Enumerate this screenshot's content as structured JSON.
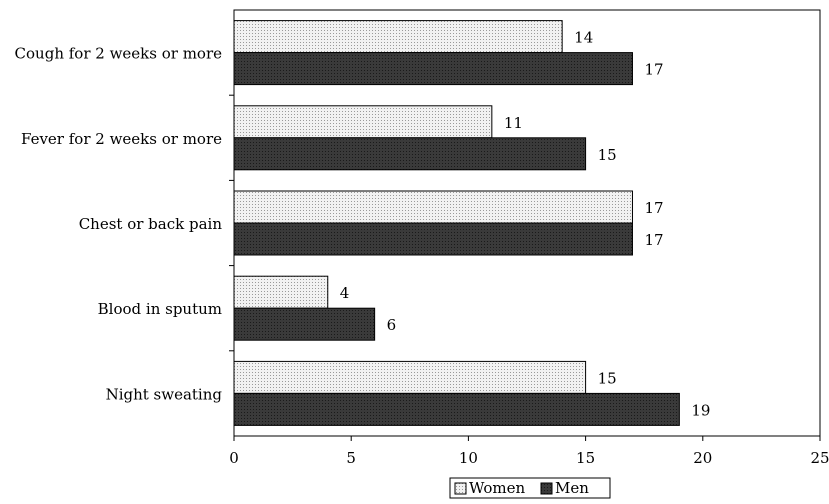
{
  "chart_data": {
    "type": "bar",
    "orientation": "horizontal",
    "categories": [
      "Cough for 2 weeks or more",
      "Fever for 2 weeks or more",
      "Chest or back pain",
      "Blood in sputum",
      "Night sweating"
    ],
    "series": [
      {
        "name": "Women",
        "values": [
          14,
          11,
          17,
          4,
          15
        ],
        "color": "#e6e6e6"
      },
      {
        "name": "Men",
        "values": [
          17,
          15,
          17,
          6,
          19
        ],
        "color": "#333333"
      }
    ],
    "xlim": [
      0,
      25
    ],
    "xticks": [
      "0",
      "5",
      "10",
      "15",
      "20",
      "25"
    ],
    "title": "",
    "xlabel": "",
    "ylabel": "",
    "grid": false,
    "legend": {
      "position": "bottom",
      "entries": [
        "Women",
        "Men"
      ]
    }
  }
}
